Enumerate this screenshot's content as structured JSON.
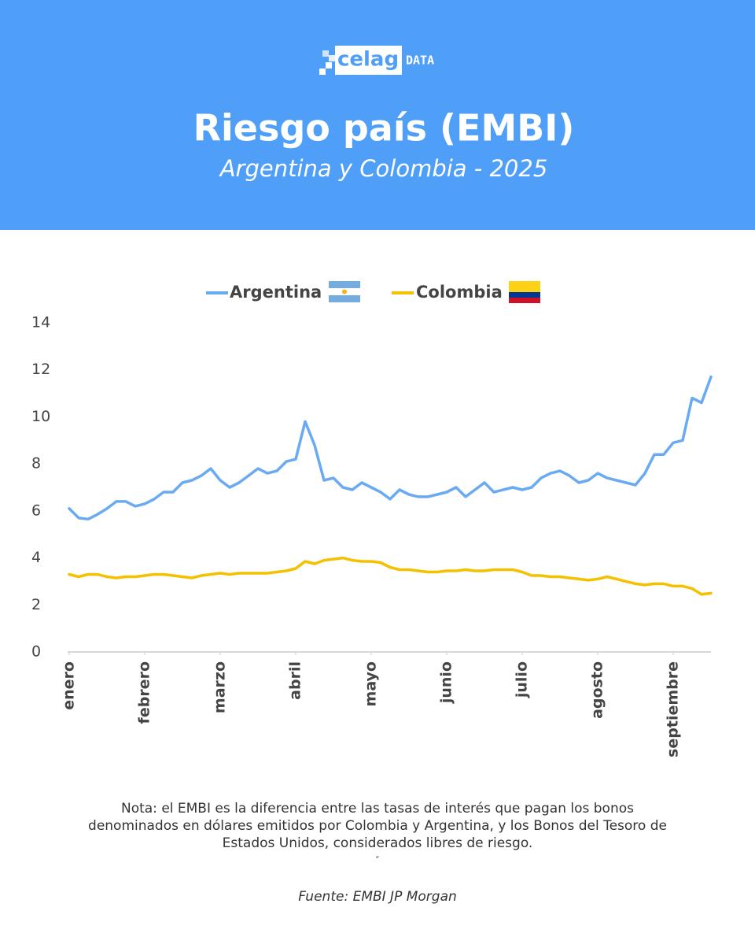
{
  "logo": {
    "name": "celag",
    "tag": "DATA"
  },
  "chart_data": {
    "type": "line",
    "title": "Riesgo país (EMBI)",
    "subtitle": "Argentina y Colombia - 2025",
    "categories": [
      "enero",
      null,
      null,
      null,
      null,
      null,
      null,
      null,
      "febrero",
      null,
      null,
      null,
      null,
      null,
      null,
      null,
      "marzo",
      null,
      null,
      null,
      null,
      null,
      null,
      null,
      "abril",
      null,
      null,
      null,
      null,
      null,
      null,
      null,
      "mayo",
      null,
      null,
      null,
      null,
      null,
      null,
      null,
      "junio",
      null,
      null,
      null,
      null,
      null,
      null,
      null,
      "julio",
      null,
      null,
      null,
      null,
      null,
      null,
      null,
      "agosto",
      null,
      null,
      null,
      null,
      null,
      null,
      null,
      "septiembre",
      null,
      null,
      null,
      null
    ],
    "series": [
      {
        "name": "Argentina",
        "color": "#6aaaf2",
        "values": [
          6.1,
          5.7,
          5.65,
          5.85,
          6.1,
          6.4,
          6.4,
          6.2,
          6.3,
          6.5,
          6.8,
          6.8,
          7.2,
          7.3,
          7.5,
          7.8,
          7.3,
          7.0,
          7.2,
          7.5,
          7.8,
          7.6,
          7.7,
          8.1,
          8.2,
          9.8,
          8.8,
          7.3,
          7.4,
          7.0,
          6.9,
          7.2,
          7.0,
          6.8,
          6.5,
          6.9,
          6.7,
          6.6,
          6.6,
          6.7,
          6.8,
          7.0,
          6.6,
          6.9,
          7.2,
          6.8,
          6.9,
          7.0,
          6.9,
          7.0,
          7.4,
          7.6,
          7.7,
          7.5,
          7.2,
          7.3,
          7.6,
          7.4,
          7.3,
          7.2,
          7.1,
          7.6,
          8.4,
          8.4,
          8.9,
          9.0,
          10.8,
          10.6,
          11.7
        ]
      },
      {
        "name": "Colombia",
        "color": "#f5c000",
        "values": [
          3.3,
          3.2,
          3.3,
          3.3,
          3.2,
          3.15,
          3.2,
          3.2,
          3.25,
          3.3,
          3.3,
          3.25,
          3.2,
          3.15,
          3.25,
          3.3,
          3.35,
          3.3,
          3.35,
          3.35,
          3.35,
          3.35,
          3.4,
          3.45,
          3.55,
          3.85,
          3.75,
          3.9,
          3.95,
          4.0,
          3.9,
          3.85,
          3.85,
          3.8,
          3.6,
          3.5,
          3.5,
          3.45,
          3.4,
          3.4,
          3.45,
          3.45,
          3.5,
          3.45,
          3.45,
          3.5,
          3.5,
          3.5,
          3.4,
          3.25,
          3.25,
          3.2,
          3.2,
          3.15,
          3.1,
          3.05,
          3.1,
          3.2,
          3.1,
          3.0,
          2.9,
          2.85,
          2.9,
          2.9,
          2.8,
          2.8,
          2.7,
          2.45,
          2.5
        ]
      }
    ],
    "ylim": [
      0,
      14
    ],
    "yticks": [
      0,
      2,
      4,
      6,
      8,
      10,
      12,
      14
    ],
    "grid": false
  },
  "note": [
    "Nota: el EMBI es la diferencia entre las tasas de interés que pagan los bonos",
    "denominados en dólares emitidos por Colombia y Argentina, y los Bonos del Tesoro de",
    "Estados Unidos, considerados libres de riesgo."
  ],
  "note_mark": "″",
  "source": "Fuente: EMBI JP Morgan"
}
